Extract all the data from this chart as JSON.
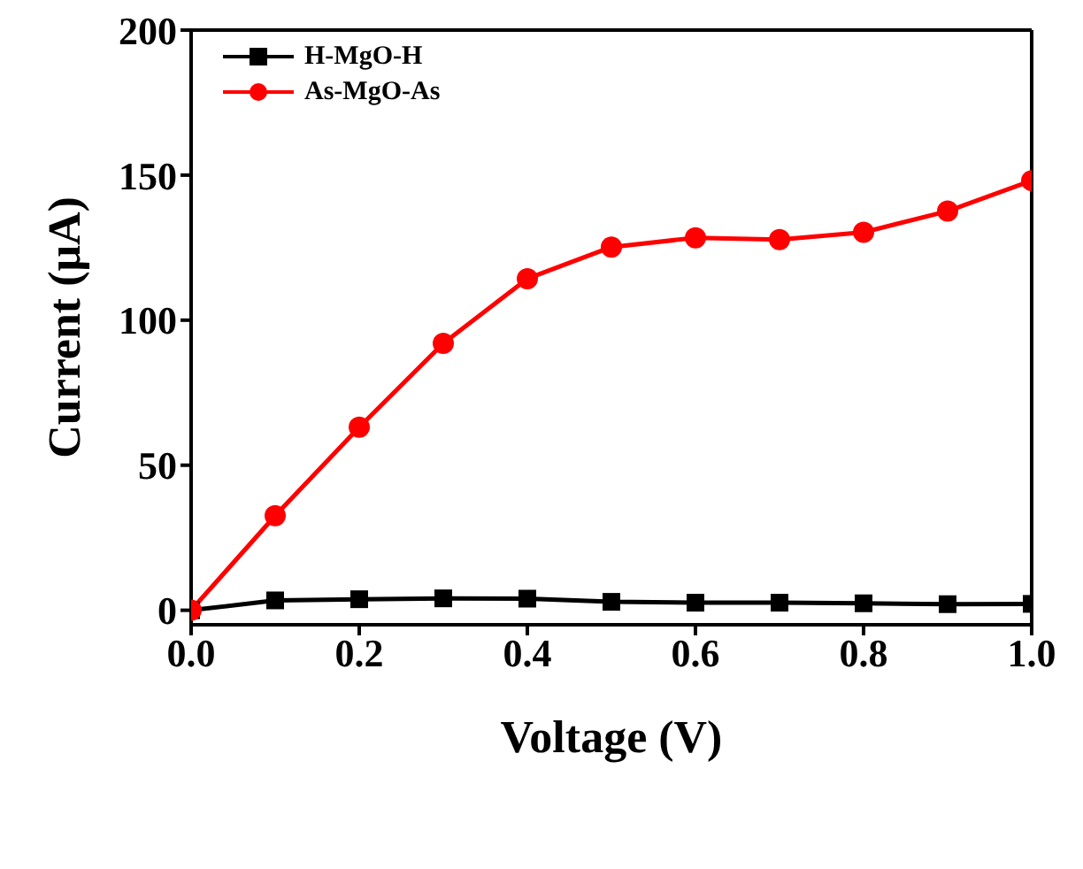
{
  "chart_data": {
    "type": "line",
    "xlabel": "Voltage (V)",
    "ylabel": "Current (μA)",
    "x": [
      0,
      0.1,
      0.2,
      0.3,
      0.4,
      0.5,
      0.6,
      0.7,
      0.8,
      0.9,
      1.0
    ],
    "series": [
      {
        "name": "H-MgO-H",
        "color": "#000000",
        "marker": "square",
        "values": [
          0,
          3.4,
          3.8,
          4.1,
          4.0,
          2.9,
          2.6,
          2.6,
          2.4,
          2.1,
          2.2
        ]
      },
      {
        "name": "As-MgO-As",
        "color": "#ff0000",
        "marker": "circle",
        "values": [
          0,
          32.6,
          63.1,
          92.0,
          114.3,
          125.2,
          128.4,
          127.8,
          130.3,
          137.6,
          148.1
        ]
      }
    ],
    "xlim": [
      0,
      1.0
    ],
    "xticks": [
      {
        "value": 0,
        "label": "0.0"
      },
      {
        "value": 0.2,
        "label": "0.2"
      },
      {
        "value": 0.4,
        "label": "0.4"
      },
      {
        "value": 0.6,
        "label": "0.6"
      },
      {
        "value": 0.8,
        "label": "0.8"
      },
      {
        "value": 1.0,
        "label": "1.0"
      }
    ],
    "ylim": [
      -5,
      200
    ],
    "yticks": [
      0,
      50,
      100,
      150,
      200
    ],
    "legend": "top left",
    "grid": false
  }
}
